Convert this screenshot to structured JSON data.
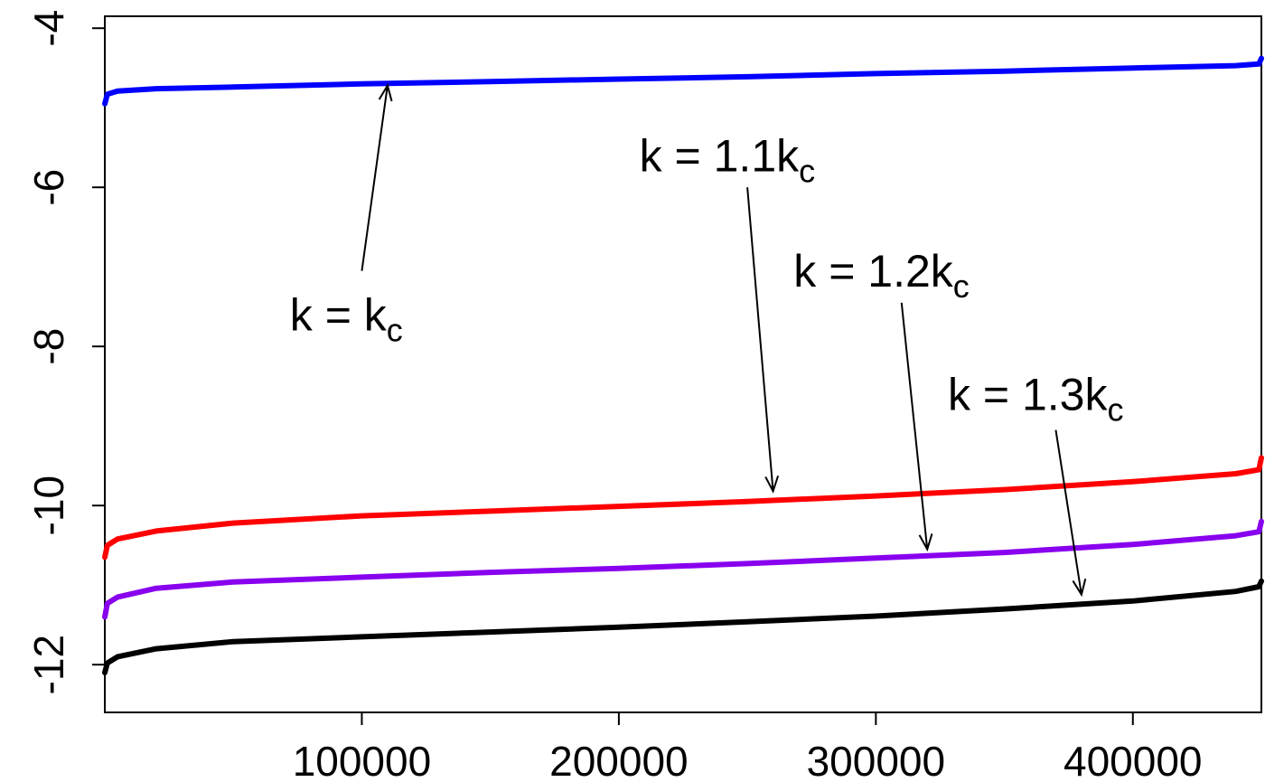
{
  "chart_data": {
    "type": "line",
    "title": "",
    "xlabel": "",
    "ylabel": "",
    "xlim": [
      1,
      450000
    ],
    "ylim": [
      -12.6,
      -3.85
    ],
    "x_ticks": [
      100000,
      200000,
      300000,
      400000
    ],
    "x_tick_labels": [
      "100000",
      "200000",
      "300000",
      "400000"
    ],
    "y_ticks": [
      -4,
      -6,
      -8,
      -10,
      -12
    ],
    "y_tick_labels": [
      "-4",
      "-6",
      "-8",
      "-10",
      "-12"
    ],
    "grid": false,
    "series": [
      {
        "color": "#0000ff",
        "x": [
          1,
          1000,
          5000,
          20000,
          50000,
          100000,
          150000,
          200000,
          250000,
          300000,
          350000,
          400000,
          440000,
          449000,
          450000
        ],
        "y": [
          -4.95,
          -4.83,
          -4.79,
          -4.76,
          -4.74,
          -4.7,
          -4.67,
          -4.64,
          -4.61,
          -4.57,
          -4.54,
          -4.5,
          -4.47,
          -4.45,
          -4.38
        ]
      },
      {
        "color": "#ff0000",
        "x": [
          1,
          1000,
          5000,
          20000,
          50000,
          100000,
          150000,
          200000,
          250000,
          300000,
          350000,
          400000,
          440000,
          449000,
          450000
        ],
        "y": [
          -10.65,
          -10.5,
          -10.42,
          -10.32,
          -10.22,
          -10.13,
          -10.07,
          -10.01,
          -9.95,
          -9.88,
          -9.8,
          -9.7,
          -9.6,
          -9.55,
          -9.4
        ]
      },
      {
        "color": "#8800ee",
        "x": [
          1,
          1000,
          5000,
          20000,
          50000,
          100000,
          150000,
          200000,
          250000,
          300000,
          350000,
          400000,
          440000,
          449000,
          450000
        ],
        "y": [
          -11.4,
          -11.23,
          -11.15,
          -11.04,
          -10.96,
          -10.9,
          -10.84,
          -10.79,
          -10.73,
          -10.66,
          -10.59,
          -10.49,
          -10.38,
          -10.33,
          -10.2
        ]
      },
      {
        "color": "#000000",
        "x": [
          1,
          1000,
          5000,
          20000,
          50000,
          100000,
          150000,
          200000,
          250000,
          300000,
          350000,
          400000,
          440000,
          449000,
          450000
        ],
        "y": [
          -12.1,
          -11.98,
          -11.9,
          -11.8,
          -11.71,
          -11.65,
          -11.59,
          -11.53,
          -11.46,
          -11.39,
          -11.3,
          -11.2,
          -11.08,
          -11.02,
          -10.95
        ]
      }
    ],
    "annotations": [
      {
        "prefix": "k = k",
        "sub": "c",
        "text_x": 72000,
        "text_y": -7.8,
        "tail_x": 100000,
        "tail_y": -7.05,
        "head_x": 110000,
        "head_y": -4.72
      },
      {
        "prefix": "k = 1.1k",
        "sub": "c",
        "text_x": 208000,
        "text_y": -5.8,
        "tail_x": 250000,
        "tail_y": -6.0,
        "head_x": 260000,
        "head_y": -9.82
      },
      {
        "prefix": "k = 1.2k",
        "sub": "c",
        "text_x": 268000,
        "text_y": -7.25,
        "tail_x": 310000,
        "tail_y": -7.45,
        "head_x": 320000,
        "head_y": -10.55
      },
      {
        "prefix": "k = 1.3k",
        "sub": "c",
        "text_x": 328000,
        "text_y": -8.8,
        "tail_x": 370000,
        "tail_y": -9.05,
        "head_x": 380000,
        "head_y": -11.12
      }
    ]
  }
}
